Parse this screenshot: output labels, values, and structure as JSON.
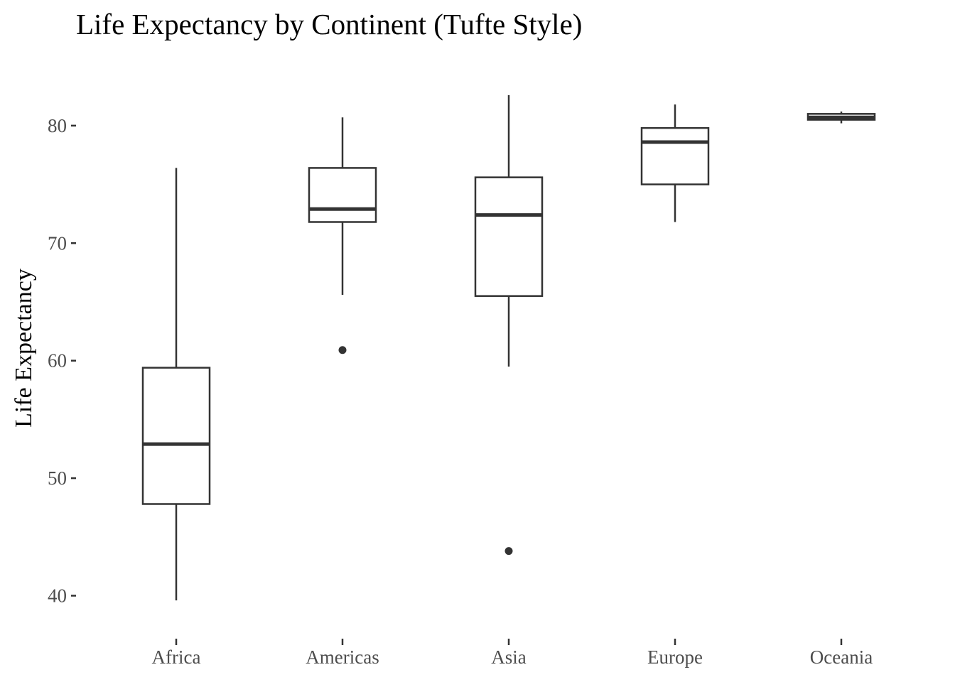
{
  "chart_data": {
    "type": "boxplot",
    "title": "Life Expectancy by Continent (Tufte Style)",
    "xlabel": "",
    "ylabel": "Life Expectancy",
    "ylim": [
      38.7,
      83.8
    ],
    "yticks": [
      40,
      50,
      60,
      70,
      80
    ],
    "grid": false,
    "categories": [
      "Africa",
      "Americas",
      "Asia",
      "Europe",
      "Oceania"
    ],
    "boxes": [
      {
        "category": "Africa",
        "whisker_low": 39.6,
        "q1": 47.8,
        "median": 52.9,
        "q3": 59.4,
        "whisker_high": 76.4,
        "outliers": []
      },
      {
        "category": "Americas",
        "whisker_low": 65.6,
        "q1": 71.8,
        "median": 72.9,
        "q3": 76.4,
        "whisker_high": 80.7,
        "outliers": [
          60.9
        ]
      },
      {
        "category": "Asia",
        "whisker_low": 59.5,
        "q1": 65.5,
        "median": 72.4,
        "q3": 75.6,
        "whisker_high": 82.6,
        "outliers": [
          43.8
        ]
      },
      {
        "category": "Europe",
        "whisker_low": 71.8,
        "q1": 75.0,
        "median": 78.6,
        "q3": 79.8,
        "whisker_high": 81.8,
        "outliers": []
      },
      {
        "category": "Oceania",
        "whisker_low": 80.2,
        "q1": 80.5,
        "median": 80.7,
        "q3": 81.0,
        "whisker_high": 81.2,
        "outliers": []
      }
    ],
    "colors": {
      "box": "#333333",
      "text": "#4d4d4d",
      "title": "#000000"
    }
  }
}
